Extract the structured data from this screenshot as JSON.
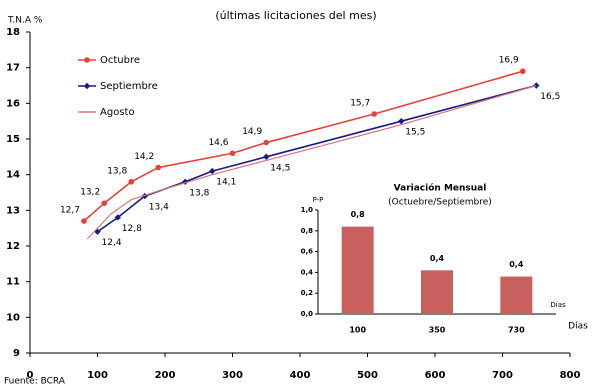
{
  "chart_data": [
    {
      "type": "line",
      "subtitle": "(últimas licitaciones del mes)",
      "ylabel": "T.N.A %",
      "xlabel": "Días",
      "source": "Fuente: BCRA",
      "xlim": [
        0,
        800
      ],
      "xticks": [
        0,
        100,
        200,
        300,
        400,
        500,
        600,
        700,
        800
      ],
      "ylim": [
        9,
        18
      ],
      "yticks": [
        9,
        10,
        11,
        12,
        13,
        14,
        15,
        16,
        17,
        18
      ],
      "legend": "upper left",
      "series": [
        {
          "name": "Octubre",
          "color": "#e8403a",
          "marker": "circle",
          "x": [
            80,
            110,
            150,
            190,
            300,
            350,
            510,
            730
          ],
          "values": [
            12.7,
            13.2,
            13.8,
            14.2,
            14.6,
            14.9,
            15.7,
            16.9
          ],
          "value_labels": [
            "12,7",
            "13,2",
            "13,8",
            "14,2",
            "14,6",
            "14,9",
            "15,7",
            "16,9"
          ]
        },
        {
          "name": "Septiembre",
          "color": "#1a1a80",
          "marker": "diamond",
          "x": [
            100,
            130,
            170,
            230,
            270,
            350,
            550,
            750
          ],
          "values": [
            12.4,
            12.8,
            13.4,
            13.8,
            14.1,
            14.5,
            15.5,
            16.5
          ],
          "value_labels": [
            "12,4",
            "12,8",
            "13,4",
            "13,8",
            "14,1",
            "14,5",
            "15,5",
            "16,5"
          ]
        },
        {
          "name": "Agosto",
          "color": "#d9727a",
          "marker": "none",
          "x": [
            85,
            120,
            150,
            200,
            270,
            350,
            550,
            750
          ],
          "values": [
            12.2,
            12.9,
            13.3,
            13.6,
            14.0,
            14.4,
            15.4,
            16.5
          ]
        }
      ]
    },
    {
      "type": "bar",
      "title": "Variación Mensual",
      "subtitle": "(Octuebre/Septiembre)",
      "ylabel": "P-P",
      "xlabel": "Días",
      "color": "#c86060",
      "categories": [
        "100",
        "350",
        "730"
      ],
      "values": [
        0.84,
        0.42,
        0.36
      ],
      "value_labels": [
        "0,8",
        "0,4",
        "0,4"
      ],
      "ylim": [
        0,
        1.0
      ],
      "yticks": [
        {
          "value": 0,
          "label": "0,0"
        },
        {
          "value": 0.2,
          "label": "0,2"
        },
        {
          "value": 0.4,
          "label": "0,4"
        },
        {
          "value": 0.6,
          "label": "0,6"
        },
        {
          "value": 0.8,
          "label": "0,8"
        },
        {
          "value": 1.0,
          "label": "1,0"
        }
      ]
    }
  ]
}
